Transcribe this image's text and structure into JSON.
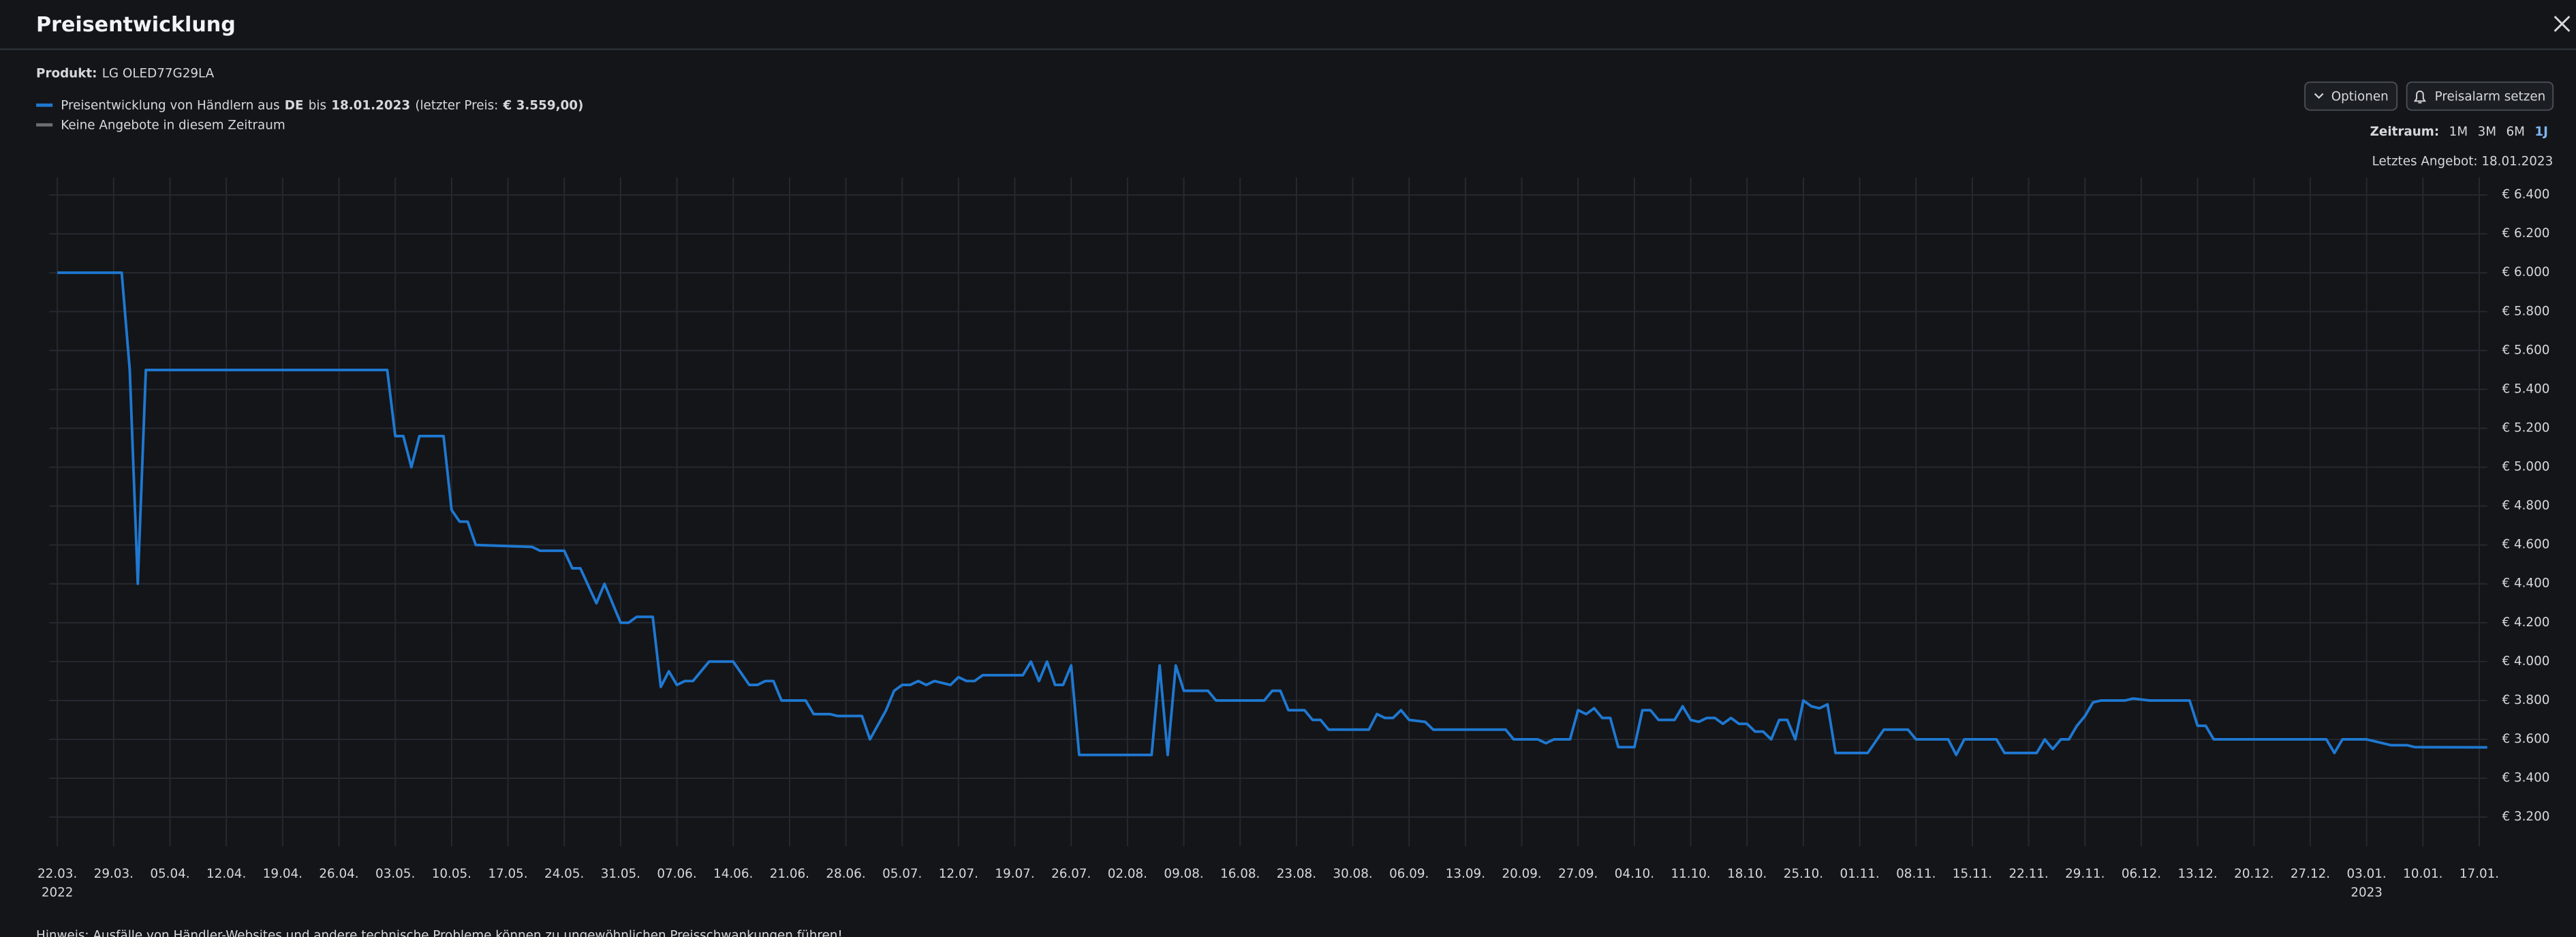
{
  "header": {
    "title": "Preisentwicklung"
  },
  "product": {
    "label": "Produkt:",
    "name": "LG OLED77G29LA"
  },
  "buttons": [
    "Optionen",
    "Preisalarm setzen"
  ],
  "period": {
    "label": "Zeitraum:",
    "options": [
      "1M",
      "3M",
      "6M",
      "1J"
    ],
    "active": 3
  },
  "last_offer": "Letztes Angebot: 18.01.2023",
  "footer": "Hinweis: Ausfälle von Händler-Websites und andere technische Probleme können zu ungewöhnlichen Preisschwankungen führen!",
  "chart_data": {
    "type": "line",
    "legend_detail": [
      {
        "text": "DE",
        "bold": true
      },
      {
        "text": "bis",
        "bold": false
      },
      {
        "text": "18.01.2023",
        "bold": true
      },
      {
        "text": "(letzter Preis:",
        "bold": false
      },
      {
        "text": "€ 3.559,00",
        "bold": true
      },
      {
        "text": ")",
        "bold": true
      }
    ],
    "no_offer_legend": {
      "label": "Keine Angebote in diesem Zeitraum",
      "color": "#6b6e73"
    },
    "grid": true,
    "xlim": [
      "2022-03-21",
      "2023-01-18"
    ],
    "ylim": [
      3050,
      6490
    ],
    "xticks": [
      {
        "value": "2022-03-22",
        "label": "22.03."
      },
      {
        "value": "2022-03-29",
        "label": "29.03."
      },
      {
        "value": "2022-04-05",
        "label": "05.04."
      },
      {
        "value": "2022-04-12",
        "label": "12.04."
      },
      {
        "value": "2022-04-19",
        "label": "19.04."
      },
      {
        "value": "2022-04-26",
        "label": "26.04."
      },
      {
        "value": "2022-05-03",
        "label": "03.05."
      },
      {
        "value": "2022-05-10",
        "label": "10.05."
      },
      {
        "value": "2022-05-17",
        "label": "17.05."
      },
      {
        "value": "2022-05-24",
        "label": "24.05."
      },
      {
        "value": "2022-05-31",
        "label": "31.05."
      },
      {
        "value": "2022-06-07",
        "label": "07.06."
      },
      {
        "value": "2022-06-14",
        "label": "14.06."
      },
      {
        "value": "2022-06-21",
        "label": "21.06."
      },
      {
        "value": "2022-06-28",
        "label": "28.06."
      },
      {
        "value": "2022-07-05",
        "label": "05.07."
      },
      {
        "value": "2022-07-12",
        "label": "12.07."
      },
      {
        "value": "2022-07-19",
        "label": "19.07."
      },
      {
        "value": "2022-07-26",
        "label": "26.07."
      },
      {
        "value": "2022-08-02",
        "label": "02.08."
      },
      {
        "value": "2022-08-09",
        "label": "09.08."
      },
      {
        "value": "2022-08-16",
        "label": "16.08."
      },
      {
        "value": "2022-08-23",
        "label": "23.08."
      },
      {
        "value": "2022-08-30",
        "label": "30.08."
      },
      {
        "value": "2022-09-06",
        "label": "06.09."
      },
      {
        "value": "2022-09-13",
        "label": "13.09."
      },
      {
        "value": "2022-09-20",
        "label": "20.09."
      },
      {
        "value": "2022-09-27",
        "label": "27.09."
      },
      {
        "value": "2022-10-04",
        "label": "04.10."
      },
      {
        "value": "2022-10-11",
        "label": "11.10."
      },
      {
        "value": "2022-10-18",
        "label": "18.10."
      },
      {
        "value": "2022-10-25",
        "label": "25.10."
      },
      {
        "value": "2022-11-01",
        "label": "01.11."
      },
      {
        "value": "2022-11-08",
        "label": "08.11."
      },
      {
        "value": "2022-11-15",
        "label": "15.11."
      },
      {
        "value": "2022-11-22",
        "label": "22.11."
      },
      {
        "value": "2022-11-29",
        "label": "29.11."
      },
      {
        "value": "2022-12-06",
        "label": "06.12."
      },
      {
        "value": "2022-12-13",
        "label": "13.12."
      },
      {
        "value": "2022-12-20",
        "label": "20.12."
      },
      {
        "value": "2022-12-27",
        "label": "27.12."
      },
      {
        "value": "2023-01-03",
        "label": "03.01."
      },
      {
        "value": "2023-01-10",
        "label": "10.01."
      },
      {
        "value": "2023-01-17",
        "label": "17.01."
      }
    ],
    "x_year_labels": [
      {
        "value": "2022-03-22",
        "label": "2022"
      },
      {
        "value": "2023-01-03",
        "label": "2023"
      }
    ],
    "yticks": [
      {
        "value": 3200,
        "label": "€ 3.200"
      },
      {
        "value": 3400,
        "label": "€ 3.400"
      },
      {
        "value": 3600,
        "label": "€ 3.600"
      },
      {
        "value": 3800,
        "label": "€ 3.800"
      },
      {
        "value": 4000,
        "label": "€ 4.000"
      },
      {
        "value": 4200,
        "label": "€ 4.200"
      },
      {
        "value": 4400,
        "label": "€ 4.400"
      },
      {
        "value": 4600,
        "label": "€ 4.600"
      },
      {
        "value": 4800,
        "label": "€ 4.800"
      },
      {
        "value": 5000,
        "label": "€ 5.000"
      },
      {
        "value": 5200,
        "label": "€ 5.200"
      },
      {
        "value": 5400,
        "label": "€ 5.400"
      },
      {
        "value": 5600,
        "label": "€ 5.600"
      },
      {
        "value": 5800,
        "label": "€ 5.800"
      },
      {
        "value": 6000,
        "label": "€ 6.000"
      },
      {
        "value": 6200,
        "label": "€ 6.200"
      },
      {
        "value": 6400,
        "label": "€ 6.400"
      }
    ],
    "series": [
      {
        "name": "Preisentwicklung von Händlern aus",
        "color": "#1f78d1",
        "x": [
          "2022-03-22",
          "2022-03-30",
          "2022-03-31",
          "2022-04-01",
          "2022-04-02",
          "2022-05-02",
          "2022-05-03",
          "2022-05-04",
          "2022-05-05",
          "2022-05-06",
          "2022-05-09",
          "2022-05-10",
          "2022-05-11",
          "2022-05-12",
          "2022-05-13",
          "2022-05-20",
          "2022-05-21",
          "2022-05-24",
          "2022-05-25",
          "2022-05-26",
          "2022-05-28",
          "2022-05-29",
          "2022-05-31",
          "2022-06-01",
          "2022-06-02",
          "2022-06-04",
          "2022-06-05",
          "2022-06-06",
          "2022-06-07",
          "2022-06-08",
          "2022-06-09",
          "2022-06-11",
          "2022-06-14",
          "2022-06-16",
          "2022-06-17",
          "2022-06-18",
          "2022-06-19",
          "2022-06-20",
          "2022-06-23",
          "2022-06-24",
          "2022-06-26",
          "2022-06-27",
          "2022-06-30",
          "2022-07-01",
          "2022-07-03",
          "2022-07-04",
          "2022-07-05",
          "2022-07-06",
          "2022-07-07",
          "2022-07-08",
          "2022-07-09",
          "2022-07-11",
          "2022-07-12",
          "2022-07-13",
          "2022-07-14",
          "2022-07-15",
          "2022-07-20",
          "2022-07-21",
          "2022-07-22",
          "2022-07-23",
          "2022-07-24",
          "2022-07-25",
          "2022-07-26",
          "2022-07-27",
          "2022-08-05",
          "2022-08-06",
          "2022-08-07",
          "2022-08-08",
          "2022-08-09",
          "2022-08-12",
          "2022-08-13",
          "2022-08-19",
          "2022-08-20",
          "2022-08-21",
          "2022-08-22",
          "2022-08-24",
          "2022-08-25",
          "2022-08-26",
          "2022-08-27",
          "2022-09-01",
          "2022-09-02",
          "2022-09-03",
          "2022-09-04",
          "2022-09-05",
          "2022-09-06",
          "2022-09-08",
          "2022-09-09",
          "2022-09-18",
          "2022-09-19",
          "2022-09-22",
          "2022-09-23",
          "2022-09-24",
          "2022-09-26",
          "2022-09-27",
          "2022-09-28",
          "2022-09-29",
          "2022-09-30",
          "2022-10-01",
          "2022-10-02",
          "2022-10-04",
          "2022-10-05",
          "2022-10-06",
          "2022-10-07",
          "2022-10-09",
          "2022-10-10",
          "2022-10-11",
          "2022-10-12",
          "2022-10-13",
          "2022-10-14",
          "2022-10-15",
          "2022-10-16",
          "2022-10-17",
          "2022-10-18",
          "2022-10-19",
          "2022-10-20",
          "2022-10-21",
          "2022-10-22",
          "2022-10-23",
          "2022-10-24",
          "2022-10-25",
          "2022-10-26",
          "2022-10-27",
          "2022-10-28",
          "2022-10-29",
          "2022-11-02",
          "2022-11-04",
          "2022-11-07",
          "2022-11-08",
          "2022-11-12",
          "2022-11-13",
          "2022-11-14",
          "2022-11-18",
          "2022-11-19",
          "2022-11-23",
          "2022-11-24",
          "2022-11-25",
          "2022-11-26",
          "2022-11-27",
          "2022-11-28",
          "2022-11-29",
          "2022-11-30",
          "2022-12-01",
          "2022-12-04",
          "2022-12-05",
          "2022-12-07",
          "2022-12-12",
          "2022-12-13",
          "2022-12-14",
          "2022-12-15",
          "2022-12-29",
          "2022-12-30",
          "2022-12-31",
          "2023-01-03",
          "2023-01-05",
          "2023-01-06",
          "2023-01-08",
          "2023-01-09",
          "2023-01-18"
        ],
        "values": [
          6000,
          6000,
          5500,
          4400,
          5500,
          5500,
          5160,
          5160,
          5000,
          5160,
          5160,
          4780,
          4720,
          4720,
          4600,
          4590,
          4570,
          4570,
          4480,
          4480,
          4300,
          4400,
          4200,
          4200,
          4230,
          4230,
          3870,
          3950,
          3880,
          3900,
          3900,
          4000,
          4000,
          3880,
          3880,
          3900,
          3900,
          3800,
          3800,
          3730,
          3730,
          3720,
          3720,
          3600,
          3750,
          3850,
          3880,
          3880,
          3900,
          3880,
          3900,
          3880,
          3920,
          3900,
          3900,
          3930,
          3930,
          4000,
          3900,
          4000,
          3880,
          3880,
          3980,
          3520,
          3520,
          3980,
          3520,
          3980,
          3850,
          3850,
          3800,
          3800,
          3850,
          3850,
          3750,
          3750,
          3700,
          3700,
          3650,
          3650,
          3730,
          3710,
          3710,
          3750,
          3700,
          3690,
          3650,
          3650,
          3600,
          3600,
          3580,
          3600,
          3600,
          3750,
          3730,
          3760,
          3710,
          3710,
          3560,
          3560,
          3750,
          3750,
          3700,
          3700,
          3770,
          3700,
          3690,
          3710,
          3710,
          3680,
          3710,
          3680,
          3680,
          3640,
          3640,
          3600,
          3700,
          3700,
          3600,
          3800,
          3770,
          3760,
          3780,
          3530,
          3530,
          3650,
          3650,
          3600,
          3600,
          3520,
          3600,
          3600,
          3530,
          3530,
          3600,
          3550,
          3600,
          3600,
          3670,
          3720,
          3790,
          3800,
          3800,
          3810,
          3800,
          3800,
          3670,
          3670,
          3600,
          3600,
          3530,
          3600,
          3600,
          3580,
          3570,
          3570,
          3560,
          3559
        ]
      }
    ]
  }
}
